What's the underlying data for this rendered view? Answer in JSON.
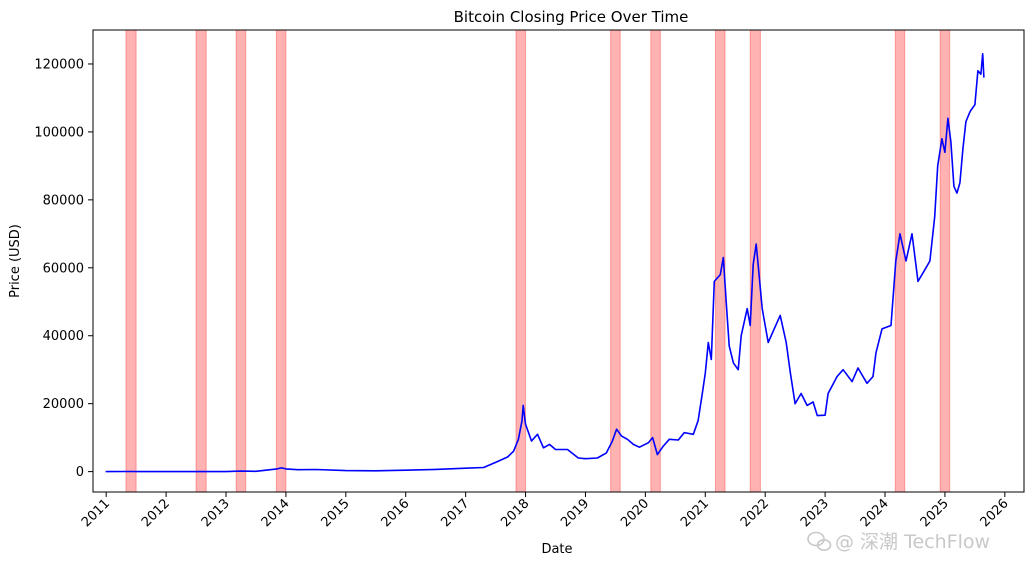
{
  "chart_data": {
    "type": "line",
    "title": "Bitcoin Closing Price Over Time",
    "xlabel": "Date",
    "ylabel": "Price (USD)",
    "x_range": [
      2010.78,
      2026.32
    ],
    "ylim": [
      -6000,
      130000
    ],
    "x_ticks": [
      "2011",
      "2012",
      "2013",
      "2014",
      "2015",
      "2016",
      "2017",
      "2018",
      "2019",
      "2020",
      "2021",
      "2022",
      "2023",
      "2024",
      "2025",
      "2026"
    ],
    "y_ticks": [
      "0",
      "20000",
      "40000",
      "60000",
      "80000",
      "100000",
      "120000"
    ],
    "series": [
      {
        "color": "#0000ff",
        "points": [
          [
            2010.99,
            0
          ],
          [
            2011.4,
            20
          ],
          [
            2011.55,
            15
          ],
          [
            2012.0,
            5
          ],
          [
            2012.5,
            7
          ],
          [
            2013.0,
            15
          ],
          [
            2013.25,
            140
          ],
          [
            2013.5,
            100
          ],
          [
            2013.85,
            800
          ],
          [
            2013.93,
            1100
          ],
          [
            2014.0,
            800
          ],
          [
            2014.2,
            550
          ],
          [
            2014.5,
            620
          ],
          [
            2015.0,
            300
          ],
          [
            2015.5,
            250
          ],
          [
            2016.0,
            430
          ],
          [
            2016.5,
            650
          ],
          [
            2017.0,
            1000
          ],
          [
            2017.3,
            1200
          ],
          [
            2017.5,
            2700
          ],
          [
            2017.7,
            4300
          ],
          [
            2017.8,
            6000
          ],
          [
            2017.88,
            9500
          ],
          [
            2017.94,
            15000
          ],
          [
            2017.96,
            19500
          ],
          [
            2018.0,
            14000
          ],
          [
            2018.1,
            9000
          ],
          [
            2018.2,
            11000
          ],
          [
            2018.3,
            7000
          ],
          [
            2018.4,
            8000
          ],
          [
            2018.5,
            6500
          ],
          [
            2018.7,
            6500
          ],
          [
            2018.88,
            4000
          ],
          [
            2019.0,
            3800
          ],
          [
            2019.2,
            4000
          ],
          [
            2019.35,
            5500
          ],
          [
            2019.45,
            9000
          ],
          [
            2019.52,
            12500
          ],
          [
            2019.6,
            10500
          ],
          [
            2019.7,
            9500
          ],
          [
            2019.8,
            8000
          ],
          [
            2019.9,
            7200
          ],
          [
            2020.05,
            8500
          ],
          [
            2020.12,
            10000
          ],
          [
            2020.2,
            5000
          ],
          [
            2020.3,
            7500
          ],
          [
            2020.4,
            9500
          ],
          [
            2020.55,
            9300
          ],
          [
            2020.65,
            11500
          ],
          [
            2020.8,
            11000
          ],
          [
            2020.88,
            15000
          ],
          [
            2020.95,
            23000
          ],
          [
            2021.0,
            29000
          ],
          [
            2021.05,
            38000
          ],
          [
            2021.1,
            33000
          ],
          [
            2021.15,
            56000
          ],
          [
            2021.25,
            58000
          ],
          [
            2021.3,
            63000
          ],
          [
            2021.35,
            50000
          ],
          [
            2021.4,
            37000
          ],
          [
            2021.47,
            32000
          ],
          [
            2021.55,
            30000
          ],
          [
            2021.6,
            40000
          ],
          [
            2021.7,
            48000
          ],
          [
            2021.75,
            43000
          ],
          [
            2021.8,
            61000
          ],
          [
            2021.85,
            67000
          ],
          [
            2021.95,
            48000
          ],
          [
            2022.05,
            38000
          ],
          [
            2022.15,
            42000
          ],
          [
            2022.25,
            46000
          ],
          [
            2022.35,
            38000
          ],
          [
            2022.42,
            29000
          ],
          [
            2022.5,
            20000
          ],
          [
            2022.6,
            23000
          ],
          [
            2022.7,
            19500
          ],
          [
            2022.8,
            20500
          ],
          [
            2022.87,
            16500
          ],
          [
            2023.0,
            16600
          ],
          [
            2023.05,
            23000
          ],
          [
            2023.2,
            28000
          ],
          [
            2023.3,
            30000
          ],
          [
            2023.45,
            26500
          ],
          [
            2023.55,
            30500
          ],
          [
            2023.7,
            26000
          ],
          [
            2023.8,
            28000
          ],
          [
            2023.85,
            35000
          ],
          [
            2023.95,
            42000
          ],
          [
            2024.1,
            43000
          ],
          [
            2024.18,
            62000
          ],
          [
            2024.25,
            70000
          ],
          [
            2024.3,
            66000
          ],
          [
            2024.35,
            62000
          ],
          [
            2024.45,
            70000
          ],
          [
            2024.55,
            56000
          ],
          [
            2024.65,
            59000
          ],
          [
            2024.75,
            62000
          ],
          [
            2024.83,
            75000
          ],
          [
            2024.88,
            90000
          ],
          [
            2024.95,
            98000
          ],
          [
            2025.0,
            94000
          ],
          [
            2025.05,
            104000
          ],
          [
            2025.1,
            97000
          ],
          [
            2025.15,
            84000
          ],
          [
            2025.2,
            82000
          ],
          [
            2025.25,
            85000
          ],
          [
            2025.3,
            95000
          ],
          [
            2025.35,
            103000
          ],
          [
            2025.42,
            106000
          ],
          [
            2025.5,
            108000
          ],
          [
            2025.55,
            118000
          ],
          [
            2025.6,
            117000
          ],
          [
            2025.63,
            123000
          ],
          [
            2025.65,
            116000
          ]
        ]
      }
    ],
    "shaded_ranges": [
      [
        2011.33,
        2011.5
      ],
      [
        2012.5,
        2012.67
      ],
      [
        2013.17,
        2013.33
      ],
      [
        2013.84,
        2014.0
      ],
      [
        2017.84,
        2018.0
      ],
      [
        2019.42,
        2019.58
      ],
      [
        2020.09,
        2020.25
      ],
      [
        2021.17,
        2021.33
      ],
      [
        2021.75,
        2021.92
      ],
      [
        2024.17,
        2024.33
      ],
      [
        2024.92,
        2025.08
      ]
    ],
    "shade_color": "#ff0000",
    "grid": false,
    "legend": "none"
  },
  "watermark": "@ 深潮 TechFlow",
  "watermark_icon": "wechat-icon"
}
